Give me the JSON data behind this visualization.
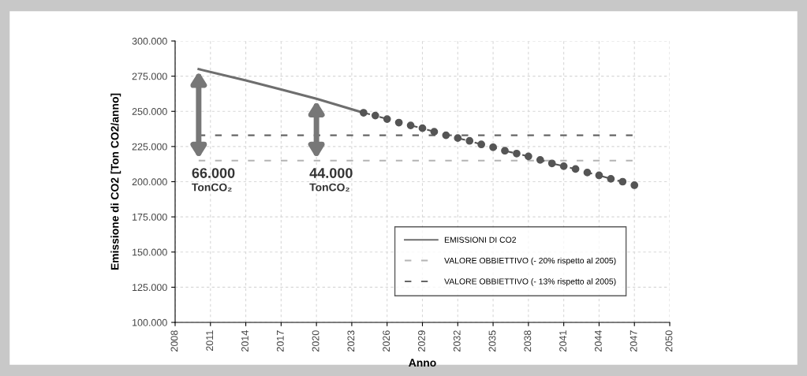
{
  "chart_data": {
    "type": "line",
    "xlabel": "Anno",
    "ylabel": "Emissione di CO2 [Ton CO2/anno]",
    "xlim": [
      2008,
      2050
    ],
    "xticks": [
      2008,
      2011,
      2014,
      2017,
      2020,
      2023,
      2026,
      2029,
      2032,
      2035,
      2038,
      2041,
      2044,
      2047,
      2050
    ],
    "ylim": [
      100000,
      300000
    ],
    "yticks": [
      {
        "value": 100000,
        "label": "100.000"
      },
      {
        "value": 125000,
        "label": "125.000"
      },
      {
        "value": 150000,
        "label": "150.000"
      },
      {
        "value": 175000,
        "label": "175.000"
      },
      {
        "value": 200000,
        "label": "200.000"
      },
      {
        "value": 225000,
        "label": "225.000"
      },
      {
        "value": 250000,
        "label": "250.000"
      },
      {
        "value": 275000,
        "label": "275.000"
      },
      {
        "value": 300000,
        "label": "300.000"
      }
    ],
    "grid": true,
    "legend": "bottom right",
    "series": [
      {
        "name": "EMISSIONI DI CO2",
        "color": "#6e6e6e",
        "line_style": "solid",
        "marker": "none",
        "x": [
          2010,
          2014,
          2017,
          2020,
          2024
        ],
        "values": [
          280000,
          272000,
          265500,
          259000,
          249000
        ]
      },
      {
        "name": "VALORE OBBIETTIVO (- 20% rispetto al 2005)",
        "color": "#b4b4b4",
        "line_style": "dashed",
        "marker": "none",
        "x": [
          2010,
          2047
        ],
        "values": [
          215000,
          215000
        ]
      },
      {
        "name": "VALORE OBBIETTIVO (- 13% rispetto al 2005)",
        "color": "#666666",
        "line_style": "dashed",
        "marker": "none",
        "x": [
          2010,
          2047
        ],
        "values": [
          233000,
          233000
        ]
      },
      {
        "color": "#555555",
        "line_style": "dashed",
        "marker": "circle",
        "x": [
          2024,
          2025,
          2026,
          2027,
          2028,
          2029,
          2030,
          2031,
          2032,
          2033,
          2034,
          2035,
          2036,
          2037,
          2038,
          2039,
          2040,
          2041,
          2042,
          2043,
          2044,
          2045,
          2046,
          2047
        ],
        "values": [
          249000,
          247000,
          244500,
          242000,
          240000,
          238000,
          235500,
          233000,
          231000,
          229000,
          226500,
          224500,
          222000,
          220000,
          218000,
          215500,
          213000,
          211000,
          209000,
          206500,
          204500,
          202000,
          200000,
          197500
        ]
      }
    ],
    "annotations": [
      {
        "text": "66.000\nTonCO₂",
        "x": 2010,
        "y": 215000
      },
      {
        "text": "44.000\nTonCO₂",
        "x": 2020,
        "y": 215000
      }
    ]
  }
}
